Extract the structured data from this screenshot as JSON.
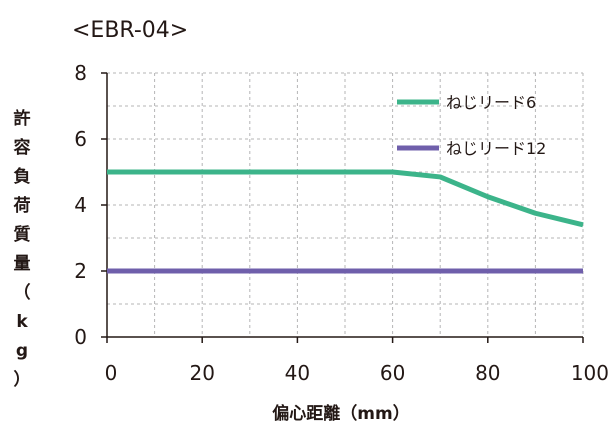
{
  "chart_data": {
    "type": "line",
    "title": "<EBR-04>",
    "xlabel": "偏心距離（mm）",
    "ylabel": "許容負荷質量（kg）",
    "xlim": [
      0,
      100
    ],
    "ylim": [
      0,
      8
    ],
    "x_ticks": [
      "0",
      "20",
      "40",
      "60",
      "80",
      "100"
    ],
    "y_ticks": [
      "0",
      "2",
      "4",
      "6",
      "8"
    ],
    "grid": true,
    "grid_step_x": 10,
    "grid_step_y": 1,
    "legend_position": "top-right",
    "series": [
      {
        "name": "ねじリード6",
        "color": "#3cb48a",
        "x": [
          0,
          10,
          20,
          30,
          40,
          50,
          60,
          70,
          80,
          90,
          100
        ],
        "y": [
          5.0,
          5.0,
          5.0,
          5.0,
          5.0,
          5.0,
          5.0,
          4.85,
          4.25,
          3.75,
          3.4
        ]
      },
      {
        "name": "ねじリード12",
        "color": "#6f5fab",
        "x": [
          0,
          100
        ],
        "y": [
          2.0,
          2.0
        ]
      }
    ]
  }
}
